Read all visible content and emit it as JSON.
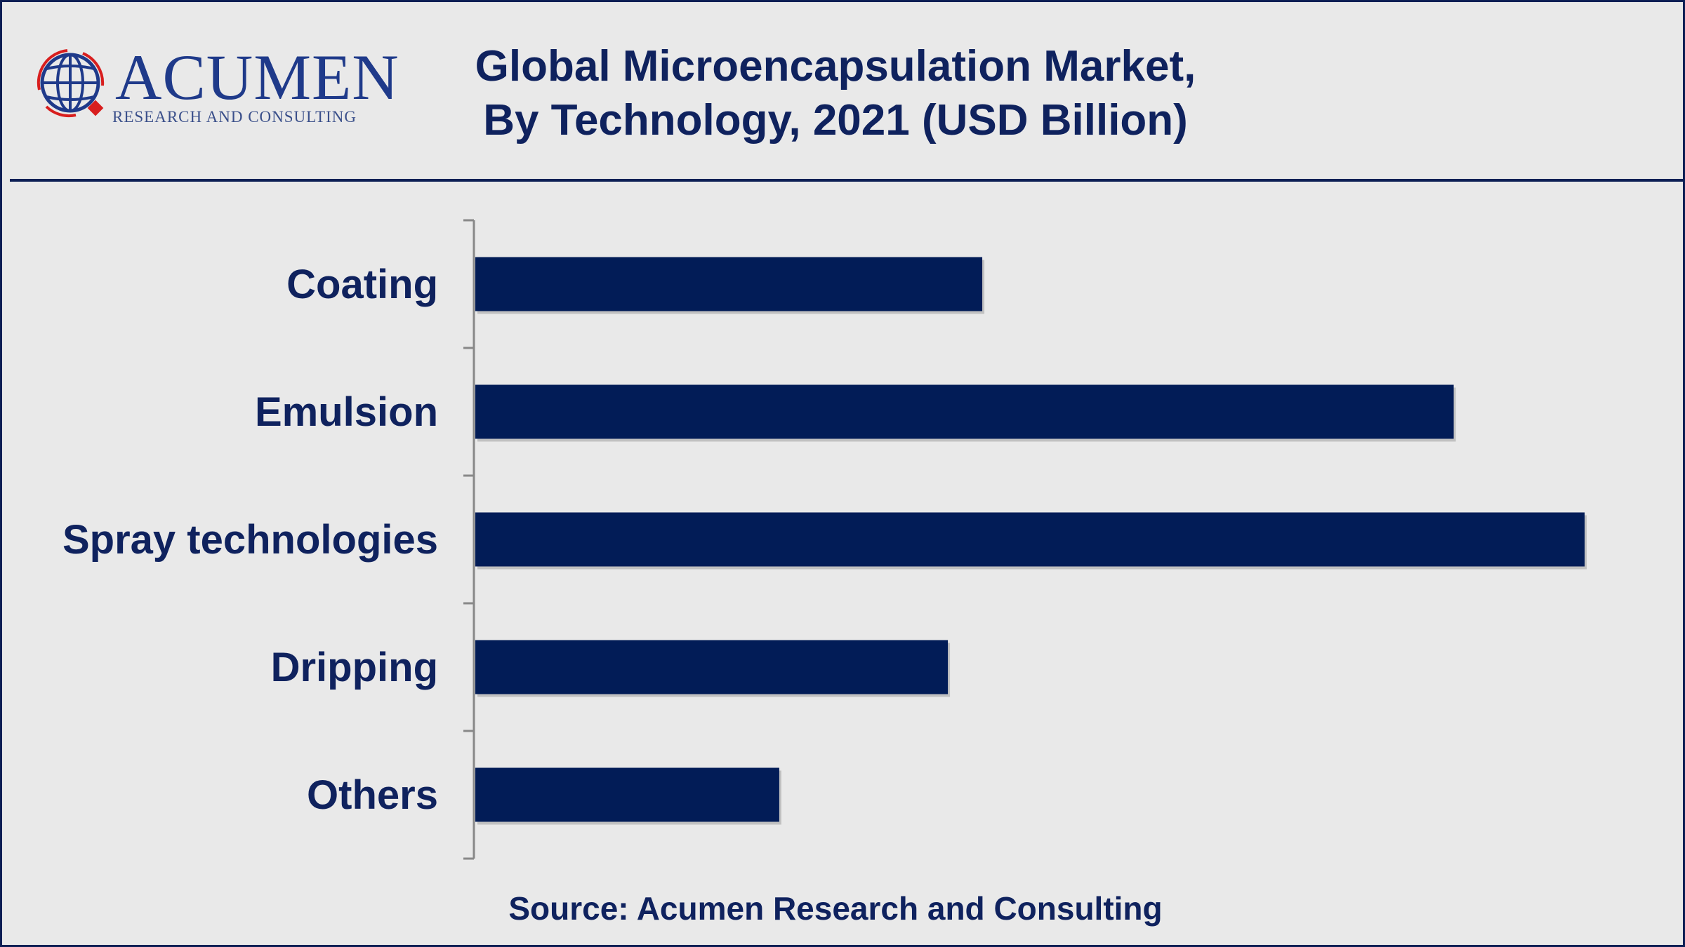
{
  "header": {
    "title_line1": "Global Microencapsulation Market,",
    "title_line2": "By Technology, 2021 (USD Billion)"
  },
  "logo": {
    "name": "ACUMEN",
    "tagline": "RESEARCH AND CONSULTING"
  },
  "source": "Source: Acumen Research and Consulting",
  "colors": {
    "bar": "#021c57",
    "text": "#0f225e",
    "background": "#e9e9e9"
  },
  "chart_data": {
    "type": "bar",
    "orientation": "horizontal",
    "title": "Global Microencapsulation Market, By Technology, 2021 (USD Billion)",
    "categories": [
      "Coating",
      "Emulsion",
      "Spray technologies",
      "Dripping",
      "Others"
    ],
    "values": [
      0.457,
      0.882,
      1.0,
      0.426,
      0.274
    ],
    "value_note": "relative to largest bar; no axis values shown",
    "xlim": [
      0,
      1
    ],
    "grid": false,
    "legend": "none"
  }
}
